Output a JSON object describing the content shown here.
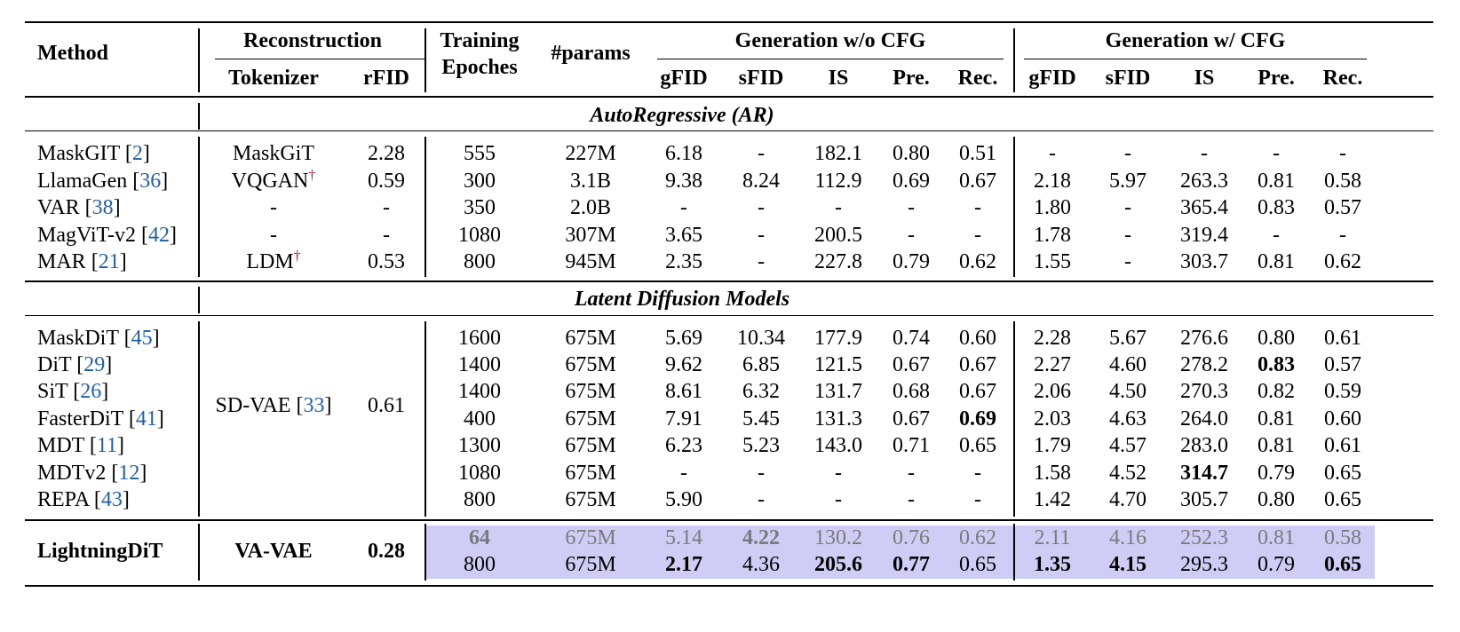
{
  "header": {
    "method": "Method",
    "reconstruction": "Reconstruction",
    "tokenizer": "Tokenizer",
    "rfid": "rFID",
    "training": "Training",
    "epoches": "Epoches",
    "params": "#params",
    "gen_wo_cfg": "Generation w/o CFG",
    "gen_w_cfg": "Generation w/ CFG",
    "metrics": [
      "gFID",
      "sFID",
      "IS",
      "Pre.",
      "Rec."
    ]
  },
  "sections": {
    "ar": "AutoRegressive (AR)",
    "ldm": "Latent Diffusion Models"
  },
  "colors": {
    "highlight": "#cfcdf5",
    "ref": "#1f5fb0",
    "dagger": "#c0143c",
    "grey_text": "#7a7a7a"
  },
  "ar_rows": [
    {
      "name": "MaskGIT",
      "ref": "2",
      "tok": "MaskGiT",
      "dag": false,
      "rfid": "2.28",
      "ep": "555",
      "params": "227M",
      "wo": [
        "6.18",
        "-",
        "182.1",
        "0.80",
        "0.51"
      ],
      "w": [
        "-",
        "-",
        "-",
        "-",
        "-"
      ]
    },
    {
      "name": "LlamaGen",
      "ref": "36",
      "tok": "VQGAN",
      "dag": true,
      "rfid": "0.59",
      "ep": "300",
      "params": "3.1B",
      "wo": [
        "9.38",
        "8.24",
        "112.9",
        "0.69",
        "0.67"
      ],
      "w": [
        "2.18",
        "5.97",
        "263.3",
        "0.81",
        "0.58"
      ]
    },
    {
      "name": "VAR",
      "ref": "38",
      "tok": "-",
      "dag": false,
      "rfid": "-",
      "ep": "350",
      "params": "2.0B",
      "wo": [
        "-",
        "-",
        "-",
        "-",
        "-"
      ],
      "w": [
        "1.80",
        "-",
        "365.4",
        "0.83",
        "0.57"
      ]
    },
    {
      "name": "MagViT-v2",
      "ref": "42",
      "tok": "-",
      "dag": false,
      "rfid": "-",
      "ep": "1080",
      "params": "307M",
      "wo": [
        "3.65",
        "-",
        "200.5",
        "-",
        "-"
      ],
      "w": [
        "1.78",
        "-",
        "319.4",
        "-",
        "-"
      ]
    },
    {
      "name": "MAR",
      "ref": "21",
      "tok": "LDM",
      "dag": true,
      "rfid": "0.53",
      "ep": "800",
      "params": "945M",
      "wo": [
        "2.35",
        "-",
        "227.8",
        "0.79",
        "0.62"
      ],
      "w": [
        "1.55",
        "-",
        "303.7",
        "0.81",
        "0.62"
      ]
    }
  ],
  "ldm_shared": {
    "tok": "SD-VAE",
    "tok_ref": "33",
    "rfid": "0.61"
  },
  "ldm_rows": [
    {
      "name": "MaskDiT",
      "ref": "45",
      "ep": "1600",
      "params": "675M",
      "wo": [
        "5.69",
        "10.34",
        "177.9",
        "0.74",
        "0.60"
      ],
      "w": [
        "2.28",
        "5.67",
        "276.6",
        "0.80",
        "0.61"
      ]
    },
    {
      "name": "DiT",
      "ref": "29",
      "ep": "1400",
      "params": "675M",
      "wo": [
        "9.62",
        "6.85",
        "121.5",
        "0.67",
        "0.67"
      ],
      "w": [
        "2.27",
        "4.60",
        "278.2",
        "0.83",
        "0.57"
      ]
    },
    {
      "name": "SiT",
      "ref": "26",
      "ep": "1400",
      "params": "675M",
      "wo": [
        "8.61",
        "6.32",
        "131.7",
        "0.68",
        "0.67"
      ],
      "w": [
        "2.06",
        "4.50",
        "270.3",
        "0.82",
        "0.59"
      ]
    },
    {
      "name": "FasterDiT",
      "ref": "41",
      "ep": "400",
      "params": "675M",
      "wo": [
        "7.91",
        "5.45",
        "131.3",
        "0.67",
        "0.69"
      ],
      "w": [
        "2.03",
        "4.63",
        "264.0",
        "0.81",
        "0.60"
      ]
    },
    {
      "name": "MDT",
      "ref": "11",
      "ep": "1300",
      "params": "675M",
      "wo": [
        "6.23",
        "5.23",
        "143.0",
        "0.71",
        "0.65"
      ],
      "w": [
        "1.79",
        "4.57",
        "283.0",
        "0.81",
        "0.61"
      ]
    },
    {
      "name": "MDTv2",
      "ref": "12",
      "ep": "1080",
      "params": "675M",
      "wo": [
        "-",
        "-",
        "-",
        "-",
        "-"
      ],
      "w": [
        "1.58",
        "4.52",
        "314.7",
        "0.79",
        "0.65"
      ]
    },
    {
      "name": "REPA",
      "ref": "43",
      "ep": "800",
      "params": "675M",
      "wo": [
        "5.90",
        "-",
        "-",
        "-",
        "-"
      ],
      "w": [
        "1.42",
        "4.70",
        "305.7",
        "0.80",
        "0.65"
      ]
    }
  ],
  "ours": {
    "name": "LightningDiT",
    "tok": "VA-VAE",
    "rfid": "0.28",
    "rows": [
      {
        "ep": "64",
        "params": "675M",
        "wo": [
          "5.14",
          "4.22",
          "130.2",
          "0.76",
          "0.62"
        ],
        "w": [
          "2.11",
          "4.16",
          "252.3",
          "0.81",
          "0.58"
        ]
      },
      {
        "ep": "800",
        "params": "675M",
        "wo": [
          "2.17",
          "4.36",
          "205.6",
          "0.77",
          "0.65"
        ],
        "w": [
          "1.35",
          "4.15",
          "295.3",
          "0.79",
          "0.65"
        ]
      }
    ]
  }
}
